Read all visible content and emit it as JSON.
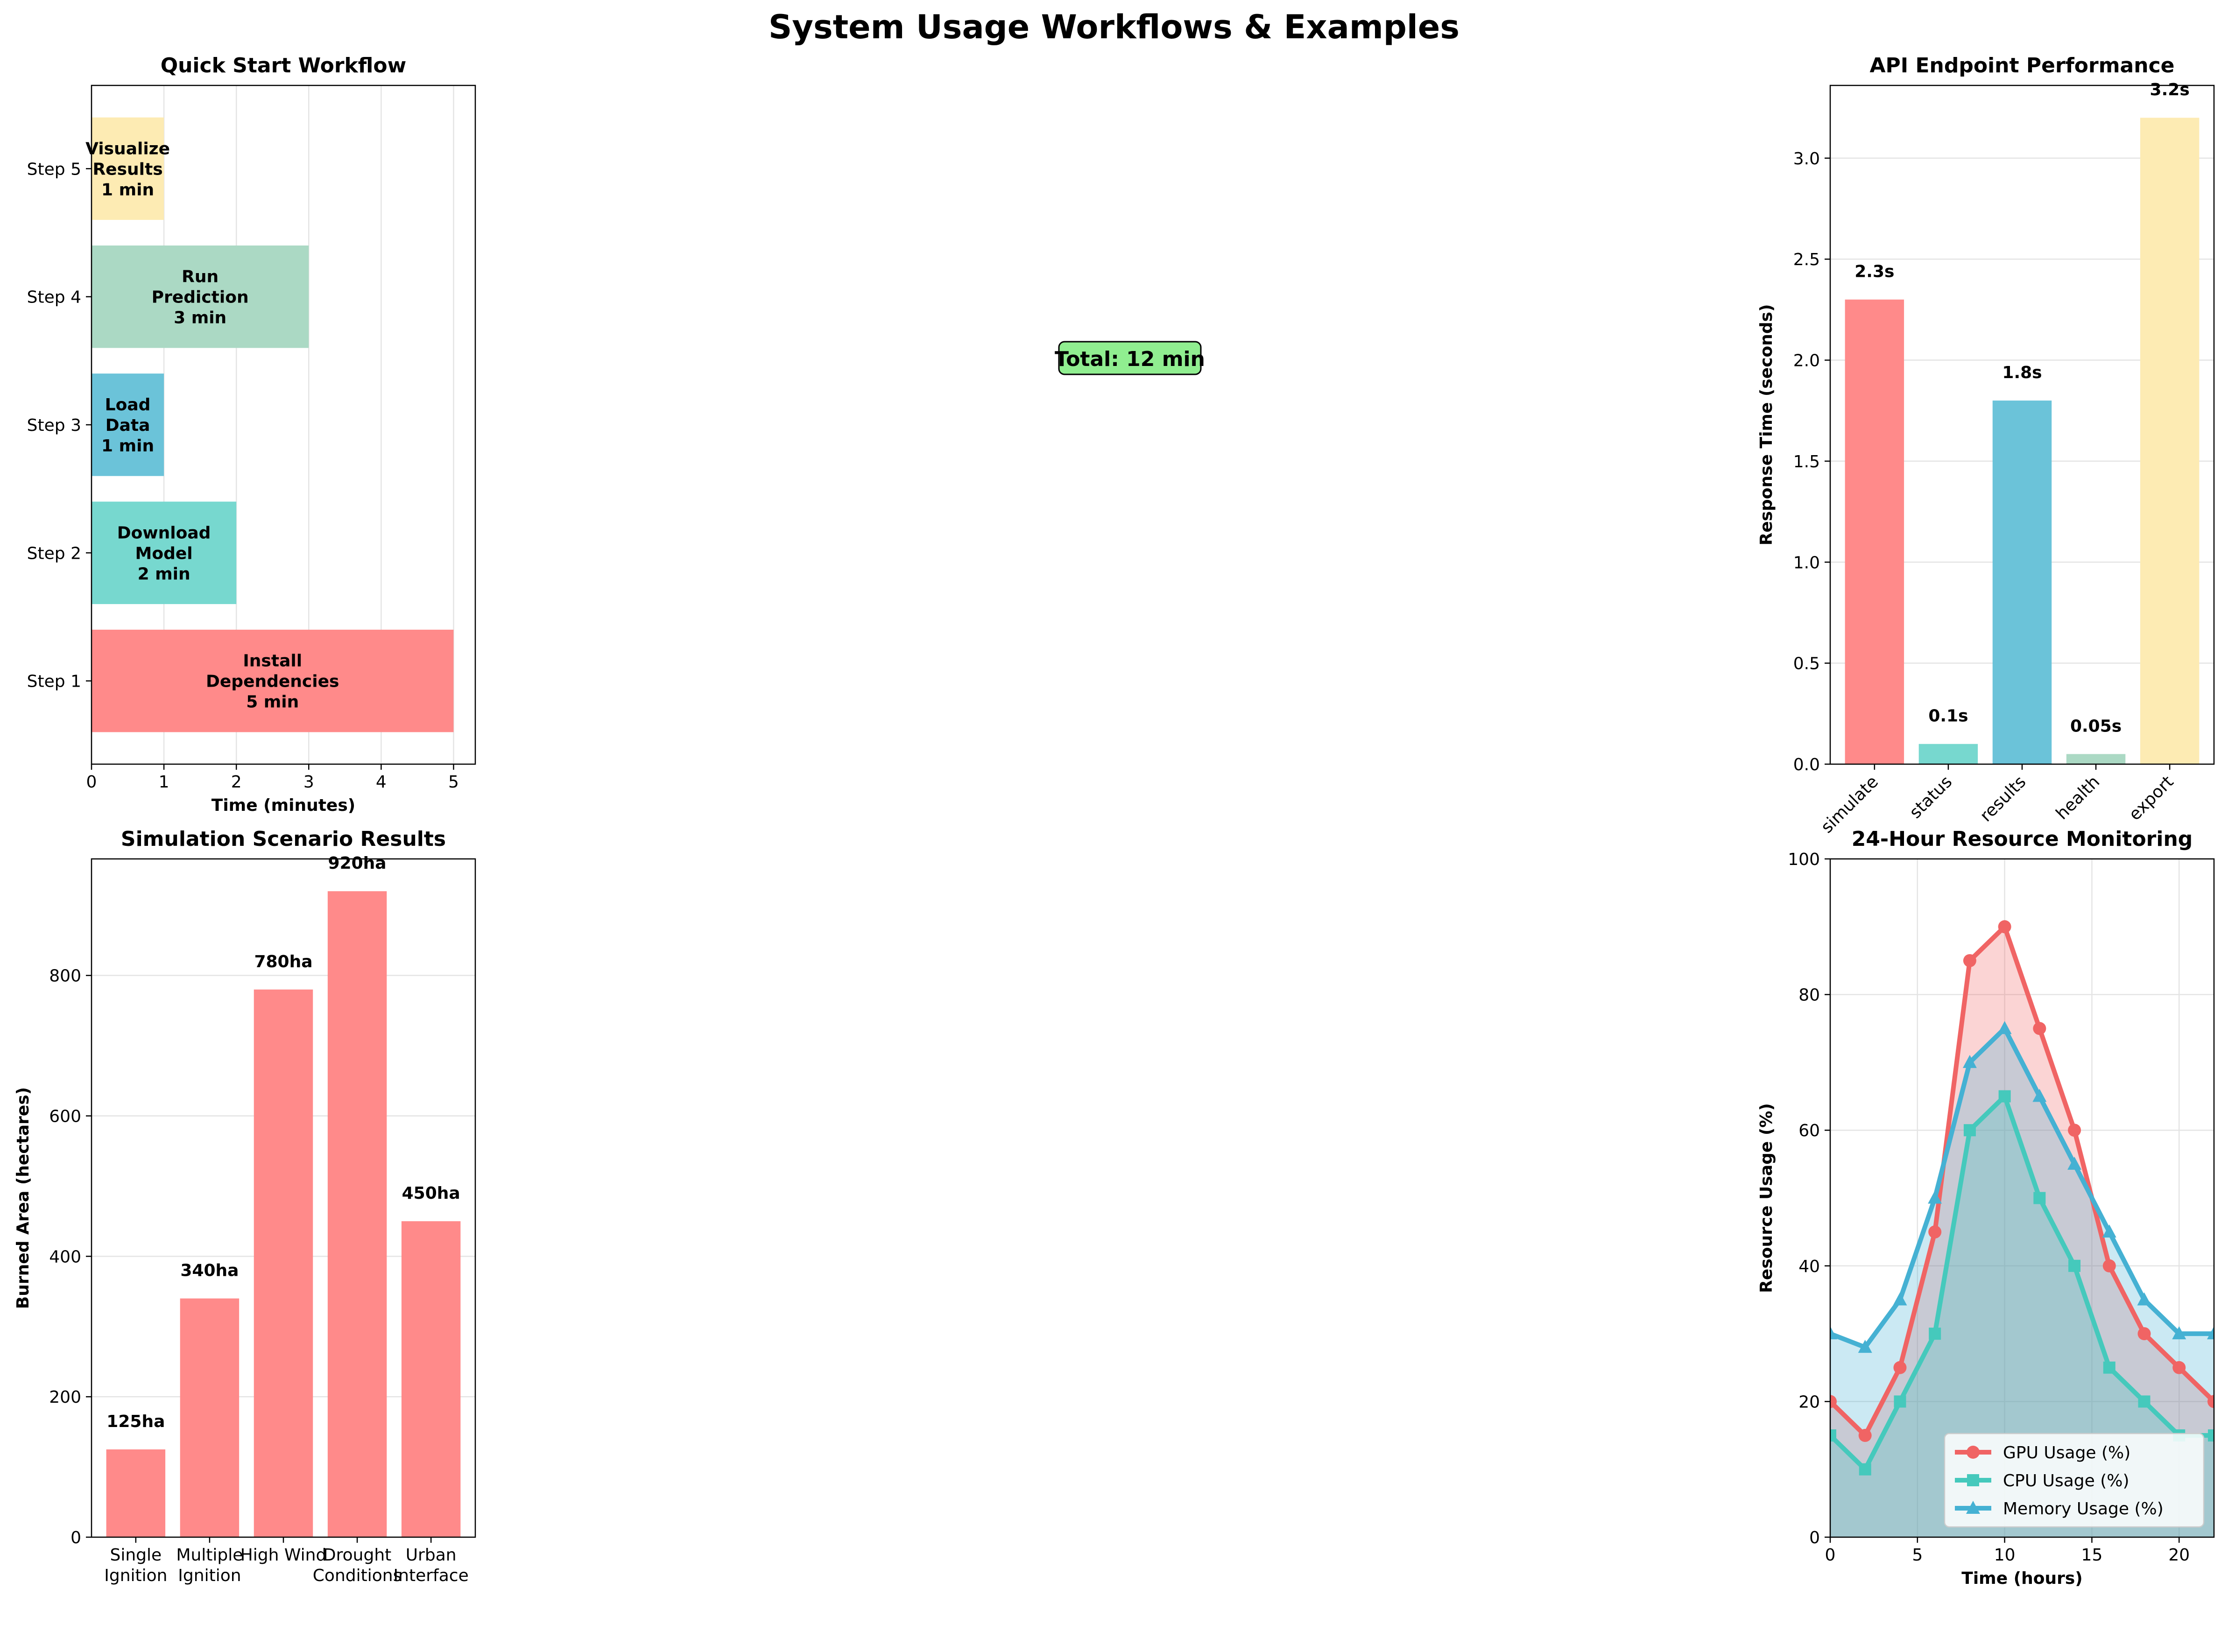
{
  "figure": {
    "title": "System Usage Workflows & Examples"
  },
  "chart_data": [
    {
      "id": "quick-start",
      "type": "bar",
      "orientation": "horizontal",
      "title": "Quick Start Workflow",
      "xlabel": "Time (minutes)",
      "ylabel": "",
      "xlim": [
        0,
        5.3
      ],
      "xticks": [
        0,
        1,
        2,
        3,
        4,
        5
      ],
      "grid": "x",
      "categories": [
        "Step 1",
        "Step 2",
        "Step 3",
        "Step 4",
        "Step 5"
      ],
      "values": [
        5,
        2,
        1,
        3,
        1
      ],
      "bar_labels": [
        [
          "Install",
          "Dependencies",
          "5 min"
        ],
        [
          "Download",
          "Model",
          "2 min"
        ],
        [
          "Load",
          "Data",
          "1 min"
        ],
        [
          "Run",
          "Prediction",
          "3 min"
        ],
        [
          "Visualize",
          "Results",
          "1 min"
        ]
      ],
      "colors": [
        "#ff8a8a",
        "#77d8cf",
        "#6bc3d9",
        "#abd9c4",
        "#fdebb3"
      ],
      "annotation": "Total: 12 min",
      "annotation_color": "#90ee90"
    },
    {
      "id": "api-performance",
      "type": "bar",
      "title": "API Endpoint Performance",
      "xlabel": "",
      "ylabel": "Response Time (seconds)",
      "ylim": [
        0,
        3.36
      ],
      "yticks": [
        0.0,
        0.5,
        1.0,
        1.5,
        2.0,
        2.5,
        3.0
      ],
      "ytick_labels": [
        "0.0",
        "0.5",
        "1.0",
        "1.5",
        "2.0",
        "2.5",
        "3.0"
      ],
      "grid": "y",
      "categories": [
        "simulate",
        "status",
        "results",
        "health",
        "export"
      ],
      "values": [
        2.3,
        0.1,
        1.8,
        0.05,
        3.2
      ],
      "value_labels": [
        "2.3s",
        "0.1s",
        "1.8s",
        "0.05s",
        "3.2s"
      ],
      "colors": [
        "#ff8a8a",
        "#77d8cf",
        "#6bc3d9",
        "#abd9c4",
        "#fdebb3"
      ]
    },
    {
      "id": "scenario-results",
      "type": "bar",
      "title": "Simulation Scenario Results",
      "xlabel": "",
      "ylabel": "Burned Area (hectares)",
      "ylim": [
        0,
        966
      ],
      "yticks": [
        0,
        200,
        400,
        600,
        800
      ],
      "grid": "y",
      "categories": [
        [
          "Single",
          "Ignition"
        ],
        [
          "Multiple",
          "Ignition"
        ],
        [
          "High Wind"
        ],
        [
          "Drought",
          "Conditions"
        ],
        [
          "Urban",
          "Interface"
        ]
      ],
      "values": [
        125,
        340,
        780,
        920,
        450
      ],
      "value_labels": [
        "125ha",
        "340ha",
        "780ha",
        "920ha",
        "450ha"
      ],
      "colors": [
        "#ff8a8a",
        "#ff8a8a",
        "#ff8a8a",
        "#ff8a8a",
        "#ff8a8a"
      ]
    },
    {
      "id": "resource-monitoring",
      "type": "area",
      "title": "24-Hour Resource Monitoring",
      "xlabel": "Time (hours)",
      "ylabel": "Resource Usage (%)",
      "xlim": [
        0,
        22
      ],
      "ylim": [
        0,
        100
      ],
      "xticks": [
        0,
        5,
        10,
        15,
        20
      ],
      "yticks": [
        0,
        20,
        40,
        60,
        80,
        100
      ],
      "grid": "both",
      "legend": "lower-right",
      "x": [
        0,
        2,
        4,
        6,
        8,
        10,
        12,
        14,
        16,
        18,
        20,
        22
      ],
      "series": [
        {
          "name": "GPU Usage (%)",
          "marker": "circle",
          "color": "#f06464",
          "values": [
            20,
            15,
            25,
            45,
            85,
            90,
            75,
            60,
            40,
            30,
            25,
            20
          ]
        },
        {
          "name": "CPU Usage (%)",
          "marker": "square",
          "color": "#45c9bc",
          "values": [
            15,
            10,
            20,
            30,
            60,
            65,
            50,
            40,
            25,
            20,
            15,
            15
          ]
        },
        {
          "name": "Memory Usage (%)",
          "marker": "triangle",
          "color": "#45b1d3",
          "values": [
            30,
            28,
            35,
            50,
            70,
            75,
            65,
            55,
            45,
            35,
            30,
            30
          ]
        }
      ]
    }
  ]
}
